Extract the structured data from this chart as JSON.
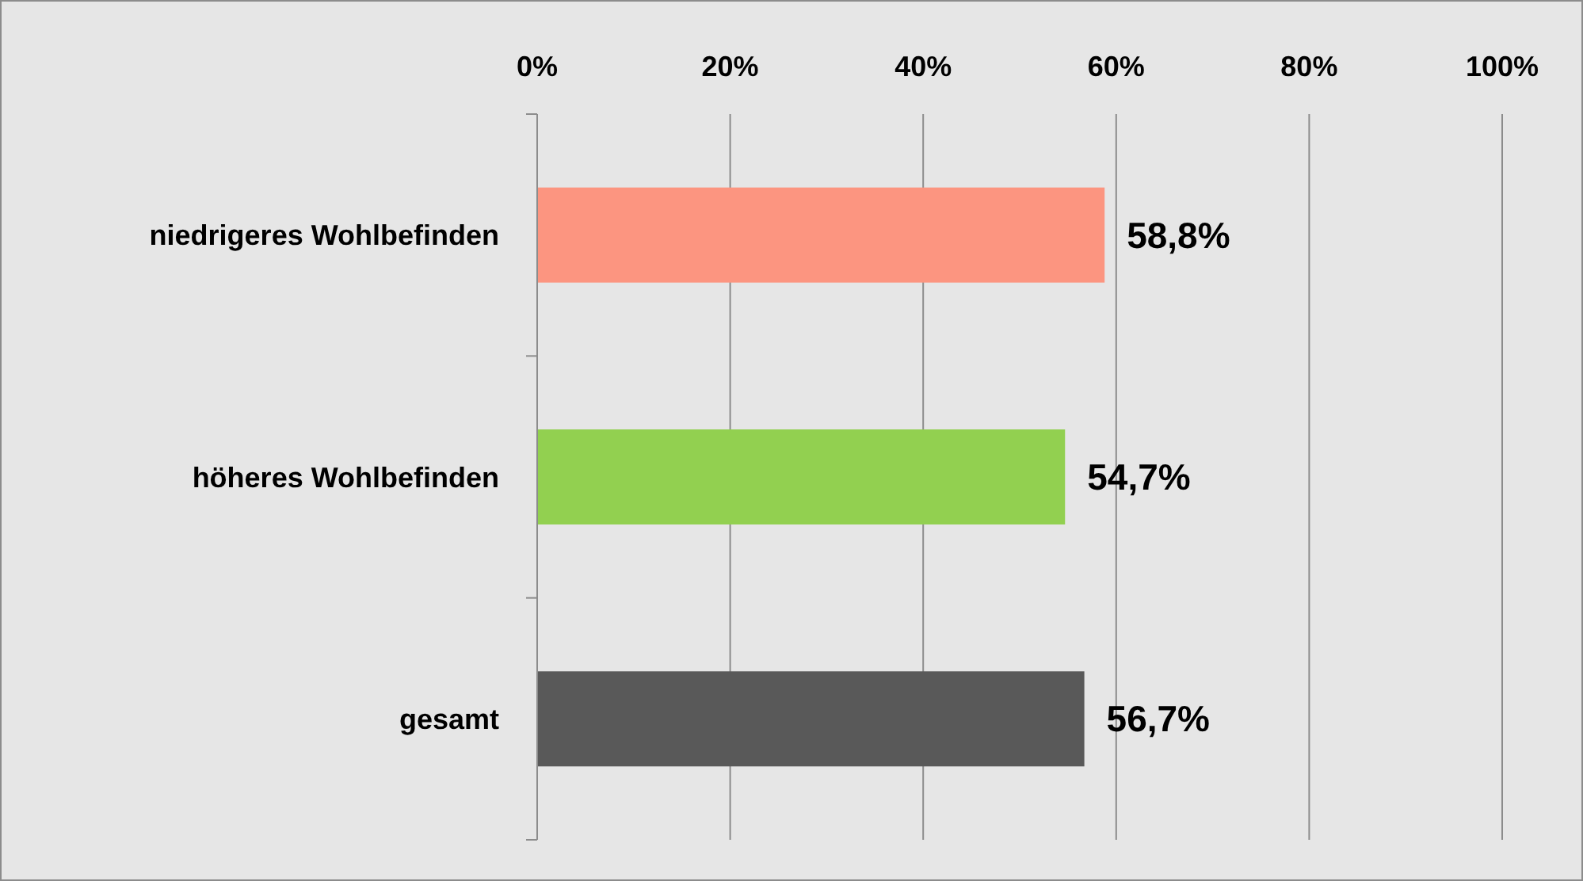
{
  "chart_data": {
    "type": "bar",
    "orientation": "horizontal",
    "categories": [
      "niedrigeres Wohlbefinden",
      "höheres Wohlbefinden",
      "gesamt"
    ],
    "values": [
      58.8,
      54.7,
      56.7
    ],
    "colors": [
      "#fc9580",
      "#92d050",
      "#595959"
    ],
    "value_labels": [
      "58,8%",
      "54,7%",
      "56,7%"
    ],
    "xlim": [
      0,
      100
    ],
    "xticks": [
      {
        "value": 0,
        "label": "0%"
      },
      {
        "value": 20,
        "label": "20%"
      },
      {
        "value": 40,
        "label": "40%"
      },
      {
        "value": 60,
        "label": "60%"
      },
      {
        "value": 80,
        "label": "80%"
      },
      {
        "value": 100,
        "label": "100%"
      }
    ],
    "grid": "x"
  }
}
